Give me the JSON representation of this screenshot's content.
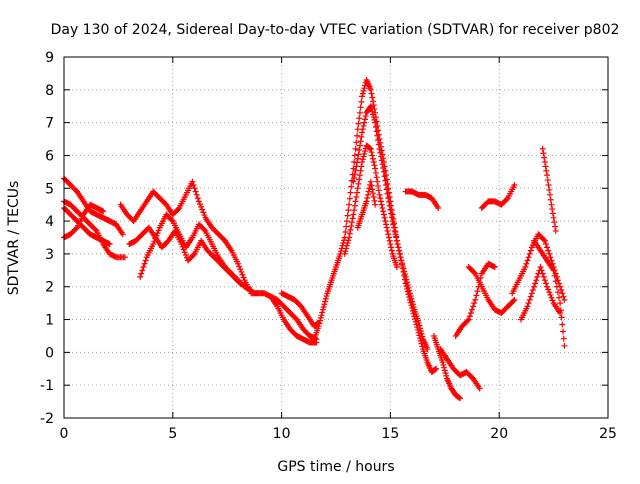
{
  "chart_data": {
    "type": "scatter",
    "title": "Day 130 of 2024, Sidereal Day-to-day VTEC variation (SDTVAR) for receiver p802",
    "xlabel": "GPS time / hours",
    "ylabel": "SDTVAR / TECUs",
    "xlim": [
      0,
      25
    ],
    "ylim": [
      -2,
      9
    ],
    "x_ticks": [
      0,
      5,
      10,
      15,
      20,
      25
    ],
    "y_ticks": [
      -2,
      -1,
      0,
      1,
      2,
      3,
      4,
      5,
      6,
      7,
      8,
      9
    ],
    "grid": true,
    "marker": "+",
    "series": [
      {
        "name": "SDTVAR",
        "color": "#ff0000",
        "tracks": [
          {
            "x": [
              0.0,
              0.3,
              0.6,
              0.9,
              1.2,
              1.5,
              1.8,
              2.1,
              2.4,
              2.7
            ],
            "y": [
              5.3,
              5.1,
              4.9,
              4.6,
              4.3,
              4.2,
              4.1,
              4.0,
              3.9,
              3.6
            ]
          },
          {
            "x": [
              0.0,
              0.3,
              0.6,
              0.9,
              1.2,
              1.5,
              1.8,
              2.1,
              2.4,
              2.8
            ],
            "y": [
              4.6,
              4.5,
              4.3,
              4.1,
              3.9,
              3.7,
              3.3,
              3.0,
              2.9,
              2.9
            ]
          },
          {
            "x": [
              0.0,
              0.3,
              0.6,
              0.9,
              1.2,
              1.5,
              1.8,
              2.1
            ],
            "y": [
              4.4,
              4.2,
              4.0,
              3.8,
              3.6,
              3.5,
              3.4,
              3.3
            ]
          },
          {
            "x": [
              0.0,
              0.3,
              0.6,
              0.9,
              1.2,
              1.5,
              1.8
            ],
            "y": [
              3.5,
              3.6,
              3.8,
              4.2,
              4.5,
              4.4,
              4.3
            ]
          },
          {
            "x": [
              2.6,
              2.9,
              3.2,
              3.5,
              3.8,
              4.1,
              4.4,
              4.7,
              5.0,
              5.3,
              5.6,
              5.9,
              6.2,
              6.5,
              6.8,
              7.1,
              7.4,
              7.7,
              8.0,
              8.3,
              8.6,
              8.9
            ],
            "y": [
              4.5,
              4.2,
              4.0,
              4.3,
              4.6,
              4.9,
              4.7,
              4.5,
              4.2,
              4.4,
              4.8,
              5.2,
              4.6,
              4.1,
              3.8,
              3.6,
              3.4,
              3.1,
              2.7,
              2.2,
              1.8,
              1.8
            ]
          },
          {
            "x": [
              3.5,
              3.8,
              4.1,
              4.4,
              4.7,
              5.0,
              5.3,
              5.6,
              5.9,
              6.2,
              6.5,
              6.8,
              7.1,
              7.4,
              7.7,
              8.0,
              8.3,
              8.6
            ],
            "y": [
              2.3,
              2.9,
              3.3,
              3.8,
              4.2,
              4.0,
              3.6,
              3.2,
              3.5,
              3.9,
              3.7,
              3.3,
              2.9,
              2.6,
              2.4,
              2.2,
              2.0,
              1.9
            ]
          },
          {
            "x": [
              3.0,
              3.3,
              3.6,
              3.9,
              4.2,
              4.5,
              4.8,
              5.1,
              5.4,
              5.7,
              6.0,
              6.3,
              6.6,
              6.9,
              7.2,
              7.5,
              7.8,
              8.1,
              8.4
            ],
            "y": [
              3.3,
              3.4,
              3.6,
              3.8,
              3.5,
              3.2,
              3.4,
              3.7,
              3.3,
              2.8,
              3.0,
              3.4,
              3.1,
              2.9,
              2.7,
              2.5,
              2.3,
              2.1,
              2.0
            ]
          },
          {
            "x": [
              8.9,
              9.2,
              9.5,
              9.8,
              10.1,
              10.4,
              10.7,
              11.0,
              11.3,
              11.6
            ],
            "y": [
              1.8,
              1.8,
              1.7,
              1.6,
              1.4,
              1.2,
              1.0,
              0.7,
              0.5,
              0.4
            ]
          },
          {
            "x": [
              9.5,
              9.8,
              10.1,
              10.4,
              10.7,
              11.0,
              11.3,
              11.6
            ],
            "y": [
              1.7,
              1.4,
              1.0,
              0.7,
              0.5,
              0.4,
              0.3,
              0.3
            ]
          },
          {
            "x": [
              10.0,
              10.3,
              10.6,
              10.9,
              11.2,
              11.5,
              11.7
            ],
            "y": [
              1.8,
              1.7,
              1.6,
              1.4,
              1.1,
              0.8,
              0.9
            ]
          },
          {
            "x": [
              11.5,
              11.7,
              11.9,
              12.1,
              12.3,
              12.5,
              12.7,
              12.9,
              13.1,
              13.3,
              13.5,
              13.7,
              13.9,
              14.1,
              14.3,
              14.5,
              14.7,
              14.9,
              15.1,
              15.3,
              15.5,
              15.7,
              15.9,
              16.1,
              16.3,
              16.5,
              16.7,
              16.9,
              17.1
            ],
            "y": [
              0.4,
              0.8,
              1.3,
              1.8,
              2.2,
              2.6,
              3.0,
              3.5,
              4.5,
              5.6,
              6.8,
              7.8,
              8.3,
              8.0,
              7.3,
              6.5,
              5.8,
              5.0,
              4.2,
              3.4,
              2.8,
              2.1,
              1.6,
              1.1,
              0.6,
              0.1,
              -0.3,
              -0.6,
              -0.5
            ]
          },
          {
            "x": [
              13.3,
              13.5,
              13.7,
              13.9,
              14.1,
              14.3,
              14.5,
              14.7,
              14.9,
              15.1,
              15.3,
              15.5,
              15.7,
              15.9,
              16.1,
              16.3,
              16.5,
              16.7
            ],
            "y": [
              5.2,
              5.9,
              6.7,
              7.3,
              7.5,
              7.0,
              6.2,
              5.5,
              4.7,
              4.0,
              3.4,
              2.8,
              2.3,
              1.8,
              1.3,
              0.9,
              0.4,
              0.1
            ]
          },
          {
            "x": [
              12.9,
              13.1,
              13.3,
              13.5,
              13.7,
              13.9,
              14.1,
              14.3,
              14.5,
              14.7,
              14.9,
              15.1,
              15.3
            ],
            "y": [
              3.0,
              3.5,
              4.2,
              5.0,
              5.8,
              6.3,
              6.2,
              5.6,
              4.8,
              4.2,
              3.6,
              3.0,
              2.6
            ]
          },
          {
            "x": [
              13.5,
              13.7,
              13.9,
              14.1,
              14.3
            ],
            "y": [
              3.8,
              4.2,
              4.6,
              5.2,
              4.5
            ]
          },
          {
            "x": [
              15.7,
              16.0,
              16.3,
              16.6,
              16.9,
              17.2
            ],
            "y": [
              4.9,
              4.9,
              4.8,
              4.8,
              4.7,
              4.4
            ]
          },
          {
            "x": [
              17.0,
              17.2,
              17.4,
              17.6,
              17.8,
              18.0,
              18.2
            ],
            "y": [
              0.5,
              0.1,
              -0.3,
              -0.8,
              -1.1,
              -1.3,
              -1.4
            ]
          },
          {
            "x": [
              17.3,
              17.6,
              17.9,
              18.2,
              18.5,
              18.8,
              19.1
            ],
            "y": [
              0.1,
              -0.2,
              -0.5,
              -0.7,
              -0.6,
              -0.8,
              -1.1
            ]
          },
          {
            "x": [
              18.0,
              18.3,
              18.6,
              18.9,
              19.2,
              19.5,
              19.8
            ],
            "y": [
              0.5,
              0.8,
              1.0,
              1.6,
              2.4,
              2.7,
              2.6
            ]
          },
          {
            "x": [
              18.6,
              18.9,
              19.2,
              19.5,
              19.8,
              20.1,
              20.4,
              20.7
            ],
            "y": [
              2.6,
              2.4,
              2.0,
              1.6,
              1.3,
              1.2,
              1.4,
              1.6
            ]
          },
          {
            "x": [
              19.2,
              19.5,
              19.8,
              20.1,
              20.4,
              20.7
            ],
            "y": [
              4.4,
              4.6,
              4.6,
              4.5,
              4.7,
              5.1
            ]
          },
          {
            "x": [
              20.6,
              20.9,
              21.2,
              21.5,
              21.8,
              22.1,
              22.4,
              22.7,
              23.0
            ],
            "y": [
              1.8,
              2.2,
              2.6,
              3.2,
              3.6,
              3.4,
              2.8,
              2.2,
              1.6
            ]
          },
          {
            "x": [
              21.0,
              21.3,
              21.6,
              21.9,
              22.2,
              22.5,
              22.8
            ],
            "y": [
              1.0,
              1.4,
              2.0,
              2.6,
              2.0,
              1.5,
              1.2
            ]
          },
          {
            "x": [
              21.6,
              21.9,
              22.2,
              22.5,
              22.8,
              23.0
            ],
            "y": [
              3.4,
              3.1,
              2.8,
              2.5,
              1.5,
              0.2
            ]
          },
          {
            "x": [
              22.0,
              22.2,
              22.4,
              22.6
            ],
            "y": [
              6.2,
              5.4,
              4.5,
              3.7
            ]
          }
        ]
      }
    ]
  }
}
